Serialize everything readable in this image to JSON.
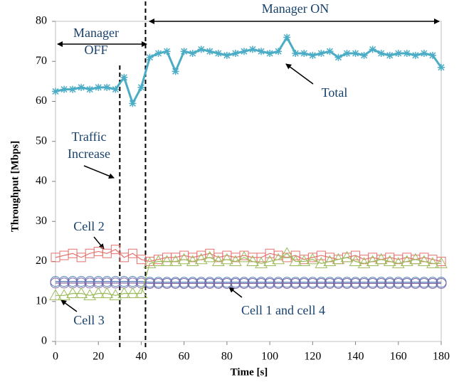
{
  "chart_data": {
    "type": "line",
    "x_label": "Time [s]",
    "y_label": "Throughput [Mbps]",
    "x": [
      0,
      4,
      8,
      12,
      16,
      20,
      24,
      28,
      32,
      36,
      40,
      44,
      48,
      52,
      56,
      60,
      64,
      68,
      72,
      76,
      80,
      84,
      88,
      92,
      96,
      100,
      104,
      108,
      112,
      116,
      120,
      124,
      128,
      132,
      136,
      140,
      144,
      148,
      152,
      156,
      160,
      164,
      168,
      172,
      176,
      180
    ],
    "series": [
      {
        "color": "#4bacc6",
        "marker": "star",
        "values": [
          62.5,
          63,
          63,
          63.5,
          63,
          63.5,
          63.5,
          63,
          66,
          59.5,
          63.5,
          71,
          72,
          72.5,
          67.5,
          72.5,
          72,
          73,
          72.5,
          72,
          71.5,
          72,
          72.5,
          73,
          72.5,
          72,
          72.5,
          76,
          72,
          72,
          71.5,
          72,
          72.5,
          71,
          72,
          72,
          71.5,
          73,
          72,
          71.5,
          72,
          72,
          71.5,
          72,
          71.5,
          68.5
        ]
      },
      {
        "color": "#e5706c",
        "marker": "square",
        "values": [
          21,
          21.5,
          22,
          21,
          22,
          22.5,
          22,
          23,
          21,
          22,
          20.5,
          20,
          20.5,
          21,
          21,
          21.5,
          21,
          21.5,
          22,
          21,
          21.5,
          21,
          21.5,
          21,
          21,
          22,
          21.5,
          21,
          21.5,
          20.5,
          21,
          21.5,
          21,
          20.5,
          21,
          21.5,
          20.5,
          21,
          20.5,
          21,
          20.5,
          21,
          20.5,
          21,
          20.5,
          20
        ]
      },
      {
        "color": "#9bbb59",
        "marker": "triangle",
        "values": [
          11.5,
          11.5,
          12,
          12,
          11.5,
          12,
          12,
          11.5,
          12,
          12,
          12,
          19.5,
          20,
          20,
          20,
          20.5,
          20,
          20.5,
          21,
          20,
          20.5,
          20,
          21,
          20,
          19.5,
          20,
          20.5,
          22,
          20,
          20,
          20.5,
          19.5,
          20,
          20.5,
          21,
          20,
          19.5,
          20,
          20.5,
          20,
          19.5,
          20,
          20.5,
          20,
          19.5,
          19.5
        ]
      },
      {
        "color": "#4f81bd",
        "marker": "circle",
        "values": [
          15,
          15,
          15,
          15,
          15,
          15,
          15,
          15,
          15,
          15,
          15,
          14.8,
          14.8,
          14.8,
          14.8,
          14.8,
          14.8,
          14.8,
          14.8,
          14.8,
          14.8,
          14.8,
          14.8,
          14.8,
          14.8,
          14.8,
          14.8,
          14.8,
          14.8,
          14.8,
          14.8,
          14.8,
          14.8,
          14.8,
          14.8,
          14.8,
          14.8,
          14.8,
          14.8,
          14.8,
          14.8,
          14.8,
          14.8,
          14.8,
          14.8,
          14.8
        ]
      },
      {
        "color": "#8064a2",
        "marker": "circle",
        "values": [
          14.6,
          14.6,
          14.6,
          14.6,
          14.6,
          14.6,
          14.6,
          14.6,
          14.6,
          14.6,
          14.6,
          14.5,
          14.5,
          14.5,
          14.5,
          14.5,
          14.5,
          14.5,
          14.5,
          14.5,
          14.5,
          14.5,
          14.5,
          14.5,
          14.5,
          14.5,
          14.5,
          14.5,
          14.5,
          14.5,
          14.5,
          14.5,
          14.5,
          14.5,
          14.5,
          14.5,
          14.5,
          14.5,
          14.5,
          14.5,
          14.5,
          14.5,
          14.5,
          14.5,
          14.5,
          14.5
        ]
      }
    ],
    "vlines": [
      30,
      42
    ],
    "annotations": [
      "Manager ON",
      "Manager",
      "OFF",
      "Traffic",
      "Increase",
      "Total",
      "Cell 2",
      "Cell 3",
      "Cell 1 and cell 4"
    ],
    "xlim": [
      0,
      180
    ],
    "xticks": [
      0,
      20,
      40,
      60,
      80,
      100,
      120,
      140,
      160,
      180
    ],
    "ylim": [
      0,
      80
    ],
    "yticks": [
      0,
      10,
      20,
      30,
      40,
      50,
      60,
      70,
      80
    ]
  }
}
